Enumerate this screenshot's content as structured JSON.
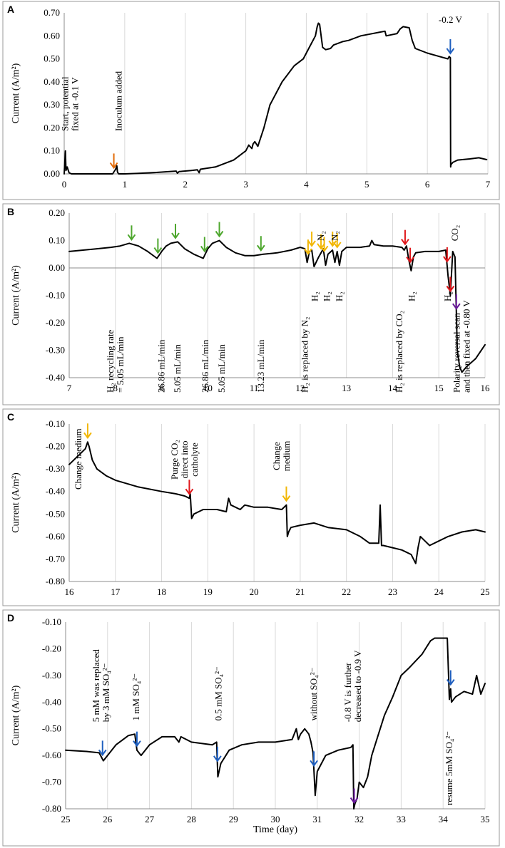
{
  "colors": {
    "blue": "#1f5fbf",
    "orange": "#e36c0a",
    "green": "#4ea72e",
    "yellow": "#f2b705",
    "red": "#e0161a",
    "purple": "#6a1b9a"
  },
  "chart_data": [
    {
      "panel": "A",
      "type": "line",
      "ylabel": "Current (A/m²)",
      "xlim": [
        0,
        7
      ],
      "ylim": [
        0,
        0.7
      ],
      "xticks": [
        "0",
        "1",
        "2",
        "3",
        "4",
        "5",
        "6",
        "7"
      ],
      "yticks": [
        "0.00",
        "0.10",
        "0.20",
        "0.30",
        "0.40",
        "0.50",
        "0.60",
        "0.70"
      ],
      "x": [
        0,
        0.02,
        0.03,
        0.05,
        0.08,
        0.12,
        0.8,
        0.85,
        0.87,
        0.88,
        0.9,
        1.0,
        1.2,
        1.5,
        1.85,
        1.87,
        1.9,
        2.1,
        2.2,
        2.23,
        2.25,
        2.5,
        2.8,
        2.95,
        3.0,
        3.05,
        3.1,
        3.12,
        3.15,
        3.2,
        3.3,
        3.4,
        3.6,
        3.8,
        3.95,
        4.05,
        4.15,
        4.18,
        4.2,
        4.22,
        4.27,
        4.32,
        4.4,
        4.45,
        4.6,
        4.7,
        4.75,
        4.8,
        4.9,
        5.0,
        5.2,
        5.3,
        5.32,
        5.5,
        5.55,
        5.6,
        5.7,
        5.75,
        5.8,
        6.0,
        6.2,
        6.34,
        6.36,
        6.38,
        6.385,
        6.39,
        6.42,
        6.5,
        6.7,
        6.85,
        6.98
      ],
      "y": [
        0,
        0.1,
        0.015,
        0.03,
        0.005,
        0,
        0,
        0.02,
        0.035,
        0.008,
        0,
        0,
        0.002,
        0.006,
        0.012,
        0.003,
        0.01,
        0.015,
        0.018,
        0.005,
        0.02,
        0.03,
        0.06,
        0.09,
        0.1,
        0.125,
        0.11,
        0.13,
        0.14,
        0.12,
        0.2,
        0.3,
        0.4,
        0.47,
        0.5,
        0.55,
        0.6,
        0.64,
        0.655,
        0.65,
        0.55,
        0.54,
        0.545,
        0.56,
        0.575,
        0.58,
        0.585,
        0.59,
        0.6,
        0.605,
        0.615,
        0.62,
        0.6,
        0.61,
        0.63,
        0.64,
        0.635,
        0.58,
        0.545,
        0.525,
        0.51,
        0.5,
        0.51,
        0.505,
        0.03,
        0.04,
        0.05,
        0.06,
        0.065,
        0.07,
        0.062
      ],
      "annotations": [
        {
          "lines": [
            "Start, potential",
            "fixed at -0.1 V"
          ],
          "x": 0.1,
          "color": "#000000"
        },
        {
          "lines": [
            "Inoculum added"
          ],
          "x": 0.9,
          "color": "#000000"
        },
        {
          "lines": [
            "-0.2 V"
          ],
          "x": 6.38,
          "color": "#000000"
        }
      ],
      "arrows": [
        {
          "x": 0.82,
          "color": "orange"
        },
        {
          "x": 6.38,
          "color": "blue"
        }
      ]
    },
    {
      "panel": "B",
      "type": "line",
      "ylabel": "Current (A/m²)",
      "xlim": [
        7,
        16
      ],
      "ylim": [
        -0.4,
        0.2
      ],
      "xticks": [
        "7",
        "8",
        "9",
        "10",
        "11",
        "12",
        "13",
        "14",
        "15",
        "16"
      ],
      "yticks": [
        "0.20",
        "0.10",
        "0.00",
        "-0.10",
        "-0.20",
        "-0.30",
        "-0.40"
      ],
      "x": [
        7,
        7.3,
        7.6,
        7.9,
        8.1,
        8.3,
        8.5,
        8.7,
        8.9,
        9.0,
        9.1,
        9.2,
        9.35,
        9.5,
        9.7,
        9.9,
        10.0,
        10.1,
        10.25,
        10.4,
        10.6,
        10.8,
        11.0,
        11.2,
        11.5,
        11.8,
        12.0,
        12.1,
        12.15,
        12.2,
        12.25,
        12.3,
        12.4,
        12.5,
        12.55,
        12.6,
        12.7,
        12.75,
        12.8,
        12.85,
        12.9,
        13.0,
        13.3,
        13.5,
        13.55,
        13.6,
        13.8,
        14.0,
        14.2,
        14.25,
        14.3,
        14.35,
        14.4,
        14.45,
        14.5,
        14.7,
        15.0,
        15.15,
        15.2,
        15.25,
        15.3,
        15.35,
        15.4,
        15.45,
        15.5,
        15.6,
        15.8,
        16.0
      ],
      "y": [
        0.06,
        0.065,
        0.07,
        0.075,
        0.08,
        0.09,
        0.08,
        0.06,
        0.035,
        0.06,
        0.08,
        0.09,
        0.095,
        0.07,
        0.05,
        0.035,
        0.07,
        0.09,
        0.1,
        0.075,
        0.055,
        0.045,
        0.045,
        0.05,
        0.055,
        0.065,
        0.075,
        0.07,
        0.02,
        0.06,
        0.065,
        0.005,
        0.04,
        0.07,
        0.01,
        0.05,
        0.065,
        0.02,
        0.06,
        0.01,
        0.06,
        0.075,
        0.075,
        0.08,
        0.1,
        0.085,
        0.08,
        0.08,
        0.075,
        0.065,
        0.08,
        0.03,
        -0.01,
        0.04,
        0.055,
        0.06,
        0.06,
        0.065,
        -0.03,
        -0.1,
        0.06,
        0.04,
        -0.3,
        -0.36,
        -0.38,
        -0.36,
        -0.33,
        -0.28
      ],
      "annotations": [
        {
          "lines": [
            "H₂ recycling rate",
            "= 5.05 mL/min"
          ],
          "x": 8.0,
          "color": "#000000"
        },
        {
          "lines": [
            "26.86 mL/min"
          ],
          "x": 9.0,
          "color": "#000000"
        },
        {
          "lines": [
            "5.05 mL/min"
          ],
          "x": 9.35,
          "color": "#000000"
        },
        {
          "lines": [
            "26.86 mL/min"
          ],
          "x": 9.95,
          "color": "#000000"
        },
        {
          "lines": [
            "5.05 mL/min"
          ],
          "x": 10.3,
          "color": "#000000"
        },
        {
          "lines": [
            "13.23 mL/min"
          ],
          "x": 11.15,
          "color": "#000000"
        },
        {
          "lines": [
            "H₂ is replaced by N₂"
          ],
          "x": 12.1,
          "color": "#000000"
        },
        {
          "lines": [
            "H₂"
          ],
          "x": 12.32,
          "color": "#000000"
        },
        {
          "lines": [
            "H₂"
          ],
          "x": 12.58,
          "color": "#000000"
        },
        {
          "lines": [
            "H₂"
          ],
          "x": 12.85,
          "color": "#000000"
        },
        {
          "lines": [
            "N₂"
          ],
          "x": 12.45,
          "color": "#000000"
        },
        {
          "lines": [
            "N₂"
          ],
          "x": 12.75,
          "color": "#000000"
        },
        {
          "lines": [
            "H₂ is replaced by CO₂"
          ],
          "x": 14.15,
          "color": "#000000"
        },
        {
          "lines": [
            "H₂"
          ],
          "x": 14.42,
          "color": "#000000"
        },
        {
          "lines": [
            "CO₂"
          ],
          "x": 15.35,
          "color": "#000000"
        },
        {
          "lines": [
            "H₂"
          ],
          "x": 15.2,
          "color": "#000000"
        },
        {
          "lines": [
            "Polarity reversal scan",
            "and then fixed at -0.80 V"
          ],
          "x": 15.5,
          "color": "#000000"
        }
      ],
      "arrows": [
        {
          "x": 8.35,
          "color": "green"
        },
        {
          "x": 8.92,
          "color": "green"
        },
        {
          "x": 9.3,
          "color": "green"
        },
        {
          "x": 9.93,
          "color": "green"
        },
        {
          "x": 10.25,
          "color": "green"
        },
        {
          "x": 11.15,
          "color": "green"
        },
        {
          "x": 12.17,
          "color": "yellow"
        },
        {
          "x": 12.25,
          "color": "yellow"
        },
        {
          "x": 12.45,
          "color": "yellow"
        },
        {
          "x": 12.52,
          "color": "yellow"
        },
        {
          "x": 12.7,
          "color": "yellow"
        },
        {
          "x": 12.8,
          "color": "yellow"
        },
        {
          "x": 14.27,
          "color": "red"
        },
        {
          "x": 14.38,
          "color": "red"
        },
        {
          "x": 15.18,
          "color": "red"
        },
        {
          "x": 15.25,
          "color": "red"
        },
        {
          "x": 15.38,
          "color": "purple"
        }
      ]
    },
    {
      "panel": "C",
      "type": "line",
      "ylabel": "Current (A/m²)",
      "xlim": [
        16,
        25
      ],
      "ylim": [
        -0.8,
        -0.1
      ],
      "xticks": [
        "16",
        "17",
        "18",
        "19",
        "20",
        "21",
        "22",
        "23",
        "24",
        "25"
      ],
      "yticks": [
        "-0.10",
        "-0.20",
        "-0.30",
        "-0.40",
        "-0.50",
        "-0.60",
        "-0.70",
        "-0.80"
      ],
      "x": [
        16,
        16.2,
        16.35,
        16.4,
        16.43,
        16.5,
        16.6,
        16.8,
        17.0,
        17.5,
        18.0,
        18.3,
        18.5,
        18.6,
        18.62,
        18.65,
        18.7,
        18.9,
        19.2,
        19.4,
        19.45,
        19.5,
        19.6,
        19.7,
        19.8,
        20.0,
        20.3,
        20.6,
        20.7,
        20.72,
        20.75,
        20.8,
        21.0,
        21.3,
        21.6,
        22.0,
        22.3,
        22.5,
        22.6,
        22.7,
        22.73,
        22.76,
        22.8,
        23.0,
        23.2,
        23.4,
        23.5,
        23.55,
        23.6,
        23.7,
        23.8,
        24.0,
        24.2,
        24.5,
        24.8,
        25.0
      ],
      "y": [
        -0.28,
        -0.24,
        -0.21,
        -0.18,
        -0.2,
        -0.26,
        -0.3,
        -0.33,
        -0.35,
        -0.38,
        -0.4,
        -0.41,
        -0.42,
        -0.43,
        -0.41,
        -0.52,
        -0.5,
        -0.48,
        -0.48,
        -0.49,
        -0.43,
        -0.46,
        -0.47,
        -0.48,
        -0.46,
        -0.47,
        -0.47,
        -0.48,
        -0.46,
        -0.6,
        -0.58,
        -0.56,
        -0.55,
        -0.54,
        -0.56,
        -0.57,
        -0.6,
        -0.63,
        -0.63,
        -0.63,
        -0.46,
        -0.64,
        -0.64,
        -0.65,
        -0.66,
        -0.68,
        -0.72,
        -0.65,
        -0.6,
        -0.62,
        -0.64,
        -0.62,
        -0.6,
        -0.58,
        -0.57,
        -0.58
      ],
      "annotations": [
        {
          "lines": [
            "Change medium"
          ],
          "x": 16.2,
          "color": "#000000"
        },
        {
          "lines": [
            "Purge CO₂",
            "direct into",
            "catholyte"
          ],
          "x": 18.5,
          "color": "#000000"
        },
        {
          "lines": [
            "Change",
            "medium"
          ],
          "x": 20.6,
          "color": "#000000"
        }
      ],
      "arrows": [
        {
          "x": 16.4,
          "color": "yellow"
        },
        {
          "x": 18.6,
          "color": "red"
        },
        {
          "x": 20.7,
          "color": "yellow"
        }
      ]
    },
    {
      "panel": "D",
      "type": "line",
      "ylabel": "Current (A/m²)",
      "xlabel": "Time (day)",
      "xlim": [
        25,
        35
      ],
      "ylim": [
        -0.8,
        -0.1
      ],
      "xticks": [
        "25",
        "26",
        "27",
        "28",
        "29",
        "30",
        "31",
        "32",
        "33",
        "34",
        "35"
      ],
      "yticks": [
        "-0.10",
        "-0.20",
        "-0.30",
        "-0.40",
        "-0.50",
        "-0.60",
        "-0.70",
        "-0.80"
      ],
      "x": [
        25,
        25.5,
        25.8,
        25.9,
        26.0,
        26.2,
        26.5,
        26.65,
        26.7,
        26.8,
        27.0,
        27.3,
        27.6,
        27.7,
        27.75,
        28.0,
        28.5,
        28.6,
        28.63,
        28.7,
        28.9,
        29.2,
        29.6,
        30.0,
        30.4,
        30.5,
        30.55,
        30.6,
        30.7,
        30.8,
        30.85,
        30.9,
        30.95,
        31.0,
        31.2,
        31.5,
        31.8,
        31.85,
        31.87,
        31.9,
        31.95,
        32.0,
        32.1,
        32.2,
        32.3,
        32.5,
        32.6,
        32.8,
        33.0,
        33.2,
        33.5,
        33.7,
        33.8,
        34.0,
        34.1,
        34.15,
        34.18,
        34.2,
        34.3,
        34.5,
        34.7,
        34.8,
        34.9,
        35.0
      ],
      "y": [
        -0.58,
        -0.585,
        -0.59,
        -0.62,
        -0.6,
        -0.56,
        -0.525,
        -0.52,
        -0.58,
        -0.6,
        -0.56,
        -0.53,
        -0.53,
        -0.55,
        -0.53,
        -0.55,
        -0.56,
        -0.55,
        -0.68,
        -0.63,
        -0.58,
        -0.56,
        -0.55,
        -0.55,
        -0.54,
        -0.5,
        -0.54,
        -0.52,
        -0.5,
        -0.52,
        -0.55,
        -0.59,
        -0.75,
        -0.66,
        -0.6,
        -0.58,
        -0.57,
        -0.56,
        -0.8,
        -0.78,
        -0.76,
        -0.7,
        -0.72,
        -0.68,
        -0.6,
        -0.5,
        -0.45,
        -0.38,
        -0.3,
        -0.27,
        -0.22,
        -0.17,
        -0.16,
        -0.16,
        -0.16,
        -0.39,
        -0.35,
        -0.4,
        -0.38,
        -0.36,
        -0.37,
        -0.3,
        -0.37,
        -0.33
      ],
      "annotations": [
        {
          "lines": [
            "5 mM was replaced",
            "by 3 mM SO₄²⁻"
          ],
          "x": 25.85,
          "color": "#000000"
        },
        {
          "lines": [
            "1 mM SO₄²⁻"
          ],
          "x": 26.68,
          "color": "#000000"
        },
        {
          "lines": [
            "0.5 mM SO₄²⁻"
          ],
          "x": 28.65,
          "color": "#000000"
        },
        {
          "lines": [
            "without SO₄²⁻"
          ],
          "x": 30.92,
          "color": "#000000"
        },
        {
          "lines": [
            "-0.8 V is further",
            "decreased to -0.9 V"
          ],
          "x": 31.85,
          "color": "#000000"
        },
        {
          "lines": [
            "resume 5mM SO₄²⁻"
          ],
          "x": 34.15,
          "color": "#000000"
        }
      ],
      "arrows": [
        {
          "x": 25.88,
          "color": "blue"
        },
        {
          "x": 26.7,
          "color": "blue"
        },
        {
          "x": 28.62,
          "color": "blue"
        },
        {
          "x": 30.92,
          "color": "blue"
        },
        {
          "x": 31.88,
          "color": "purple"
        },
        {
          "x": 34.18,
          "color": "blue"
        }
      ]
    }
  ]
}
